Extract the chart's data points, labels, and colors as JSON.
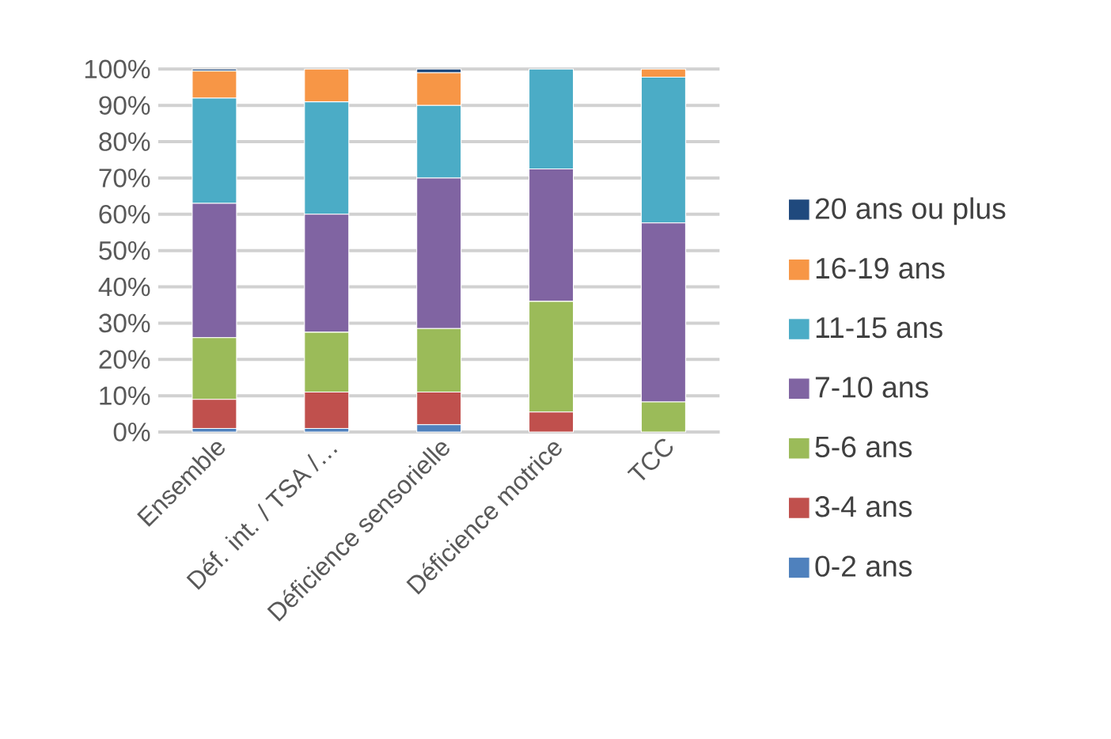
{
  "chart_data": {
    "type": "bar",
    "stacked": true,
    "categories": [
      "Ensemble",
      "Déf. int. / TSA /…",
      "Déficience sensorielle",
      "Déficience motrice",
      "TCC"
    ],
    "series": [
      {
        "name": "0-2 ans",
        "color": "#4f81bd",
        "values": [
          1,
          1,
          2,
          0,
          0
        ]
      },
      {
        "name": "3-4 ans",
        "color": "#c0504d",
        "values": [
          8,
          10,
          9,
          5.5,
          0
        ]
      },
      {
        "name": "5-6 ans",
        "color": "#9bbb59",
        "values": [
          17,
          16.5,
          17.5,
          30.5,
          8.3
        ]
      },
      {
        "name": "7-10 ans",
        "color": "#8064a2",
        "values": [
          37,
          32.5,
          41.5,
          36.5,
          49.3
        ]
      },
      {
        "name": "11-15 ans",
        "color": "#4bacc6",
        "values": [
          29,
          31,
          20,
          27.5,
          40.2
        ]
      },
      {
        "name": "16-19 ans",
        "color": "#f79646",
        "values": [
          7.5,
          9,
          9,
          0,
          2.2
        ]
      },
      {
        "name": "20 ans ou plus",
        "color": "#1f497d",
        "values": [
          0.5,
          0,
          1,
          0,
          0
        ]
      }
    ],
    "ylim": [
      0,
      100
    ],
    "yticks": [
      {
        "value": 0,
        "label": "0%"
      },
      {
        "value": 10,
        "label": "10%"
      },
      {
        "value": 20,
        "label": "20%"
      },
      {
        "value": 30,
        "label": "30%"
      },
      {
        "value": 40,
        "label": "40%"
      },
      {
        "value": 50,
        "label": "50%"
      },
      {
        "value": 60,
        "label": "60%"
      },
      {
        "value": 70,
        "label": "70%"
      },
      {
        "value": 80,
        "label": "80%"
      },
      {
        "value": 90,
        "label": "90%"
      },
      {
        "value": 100,
        "label": "100%"
      }
    ],
    "grid": "y",
    "legend": "right"
  }
}
